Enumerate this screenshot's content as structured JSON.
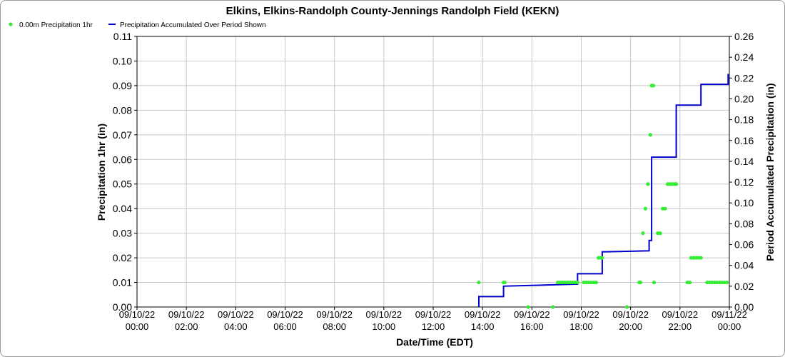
{
  "chart_data": {
    "type": "scatter+line",
    "title": "Elkins, Elkins-Randolph County-Jennings Randolph Field (KEKN)",
    "xlabel": "Date/Time (EDT)",
    "ylabel_left": "Precipitation 1hr (in)",
    "ylabel_right": "Period Accumulated Precipitation (in)",
    "legend": {
      "position": "top-left",
      "entries": [
        {
          "name": "0.00m Precipitation 1hr",
          "color": "#33ee33"
        },
        {
          "name": "Precipitation Accumulated Over Period Shown",
          "color": "#0000cc"
        }
      ]
    },
    "grid": true,
    "x_range_hours": [
      0,
      24
    ],
    "x_ticks": [
      {
        "t": 0,
        "date": "09/10/22",
        "time": "00:00"
      },
      {
        "t": 2,
        "date": "09/10/22",
        "time": "02:00"
      },
      {
        "t": 4,
        "date": "09/10/22",
        "time": "04:00"
      },
      {
        "t": 6,
        "date": "09/10/22",
        "time": "06:00"
      },
      {
        "t": 8,
        "date": "09/10/22",
        "time": "08:00"
      },
      {
        "t": 10,
        "date": "09/10/22",
        "time": "10:00"
      },
      {
        "t": 12,
        "date": "09/10/22",
        "time": "12:00"
      },
      {
        "t": 14,
        "date": "09/10/22",
        "time": "14:00"
      },
      {
        "t": 16,
        "date": "09/10/22",
        "time": "16:00"
      },
      {
        "t": 18,
        "date": "09/10/22",
        "time": "18:00"
      },
      {
        "t": 20,
        "date": "09/10/22",
        "time": "20:00"
      },
      {
        "t": 22,
        "date": "09/10/22",
        "time": "22:00"
      },
      {
        "t": 24,
        "date": "09/11/22",
        "time": "00:00"
      }
    ],
    "y_left": {
      "min": 0,
      "max": 0.11,
      "ticks": [
        "0.00",
        "0.01",
        "0.02",
        "0.03",
        "0.04",
        "0.05",
        "0.06",
        "0.07",
        "0.08",
        "0.09",
        "0.10",
        "0.11"
      ]
    },
    "y_right": {
      "min": 0,
      "max": 0.26,
      "ticks": [
        "0.00",
        "0.02",
        "0.04",
        "0.06",
        "0.08",
        "0.10",
        "0.12",
        "0.14",
        "0.16",
        "0.18",
        "0.20",
        "0.22",
        "0.24",
        "0.26"
      ]
    },
    "precip_1hr_points": [
      [
        13.85,
        0.01
      ],
      [
        14.85,
        0.01
      ],
      [
        14.9,
        0.01
      ],
      [
        15.85,
        0.0
      ],
      [
        16.85,
        0.0
      ],
      [
        17.05,
        0.01
      ],
      [
        17.15,
        0.01
      ],
      [
        17.25,
        0.01
      ],
      [
        17.35,
        0.01
      ],
      [
        17.45,
        0.01
      ],
      [
        17.55,
        0.01
      ],
      [
        17.65,
        0.01
      ],
      [
        17.75,
        0.01
      ],
      [
        17.85,
        0.01
      ],
      [
        18.1,
        0.01
      ],
      [
        18.2,
        0.01
      ],
      [
        18.3,
        0.01
      ],
      [
        18.4,
        0.01
      ],
      [
        18.5,
        0.01
      ],
      [
        18.6,
        0.01
      ],
      [
        18.7,
        0.02
      ],
      [
        18.8,
        0.02
      ],
      [
        18.85,
        0.02
      ],
      [
        19.85,
        0.0
      ],
      [
        20.35,
        0.01
      ],
      [
        20.4,
        0.01
      ],
      [
        20.5,
        0.03
      ],
      [
        20.6,
        0.04
      ],
      [
        20.7,
        0.05
      ],
      [
        20.8,
        0.07
      ],
      [
        20.85,
        0.09
      ],
      [
        20.92,
        0.09
      ],
      [
        20.95,
        0.01
      ],
      [
        21.1,
        0.03
      ],
      [
        21.2,
        0.03
      ],
      [
        21.3,
        0.04
      ],
      [
        21.4,
        0.04
      ],
      [
        21.5,
        0.05
      ],
      [
        21.6,
        0.05
      ],
      [
        21.7,
        0.05
      ],
      [
        21.8,
        0.05
      ],
      [
        21.85,
        0.05
      ],
      [
        22.3,
        0.01
      ],
      [
        22.4,
        0.01
      ],
      [
        22.45,
        0.02
      ],
      [
        22.55,
        0.02
      ],
      [
        22.65,
        0.02
      ],
      [
        22.75,
        0.02
      ],
      [
        22.85,
        0.02
      ],
      [
        23.1,
        0.01
      ],
      [
        23.2,
        0.01
      ],
      [
        23.3,
        0.01
      ],
      [
        23.4,
        0.01
      ],
      [
        23.5,
        0.01
      ],
      [
        23.6,
        0.01
      ],
      [
        23.7,
        0.01
      ],
      [
        23.8,
        0.01
      ],
      [
        23.9,
        0.01
      ]
    ],
    "accumulated_steps": [
      [
        13.85,
        0.0
      ],
      [
        13.85,
        0.01
      ],
      [
        14.85,
        0.01
      ],
      [
        14.85,
        0.02
      ],
      [
        17.85,
        0.022
      ],
      [
        17.85,
        0.032
      ],
      [
        18.85,
        0.032
      ],
      [
        18.85,
        0.053
      ],
      [
        20.75,
        0.054
      ],
      [
        20.75,
        0.064
      ],
      [
        20.85,
        0.064
      ],
      [
        20.85,
        0.144
      ],
      [
        21.85,
        0.144
      ],
      [
        21.85,
        0.194
      ],
      [
        22.85,
        0.194
      ],
      [
        22.85,
        0.214
      ],
      [
        23.95,
        0.214
      ],
      [
        23.95,
        0.224
      ]
    ]
  }
}
